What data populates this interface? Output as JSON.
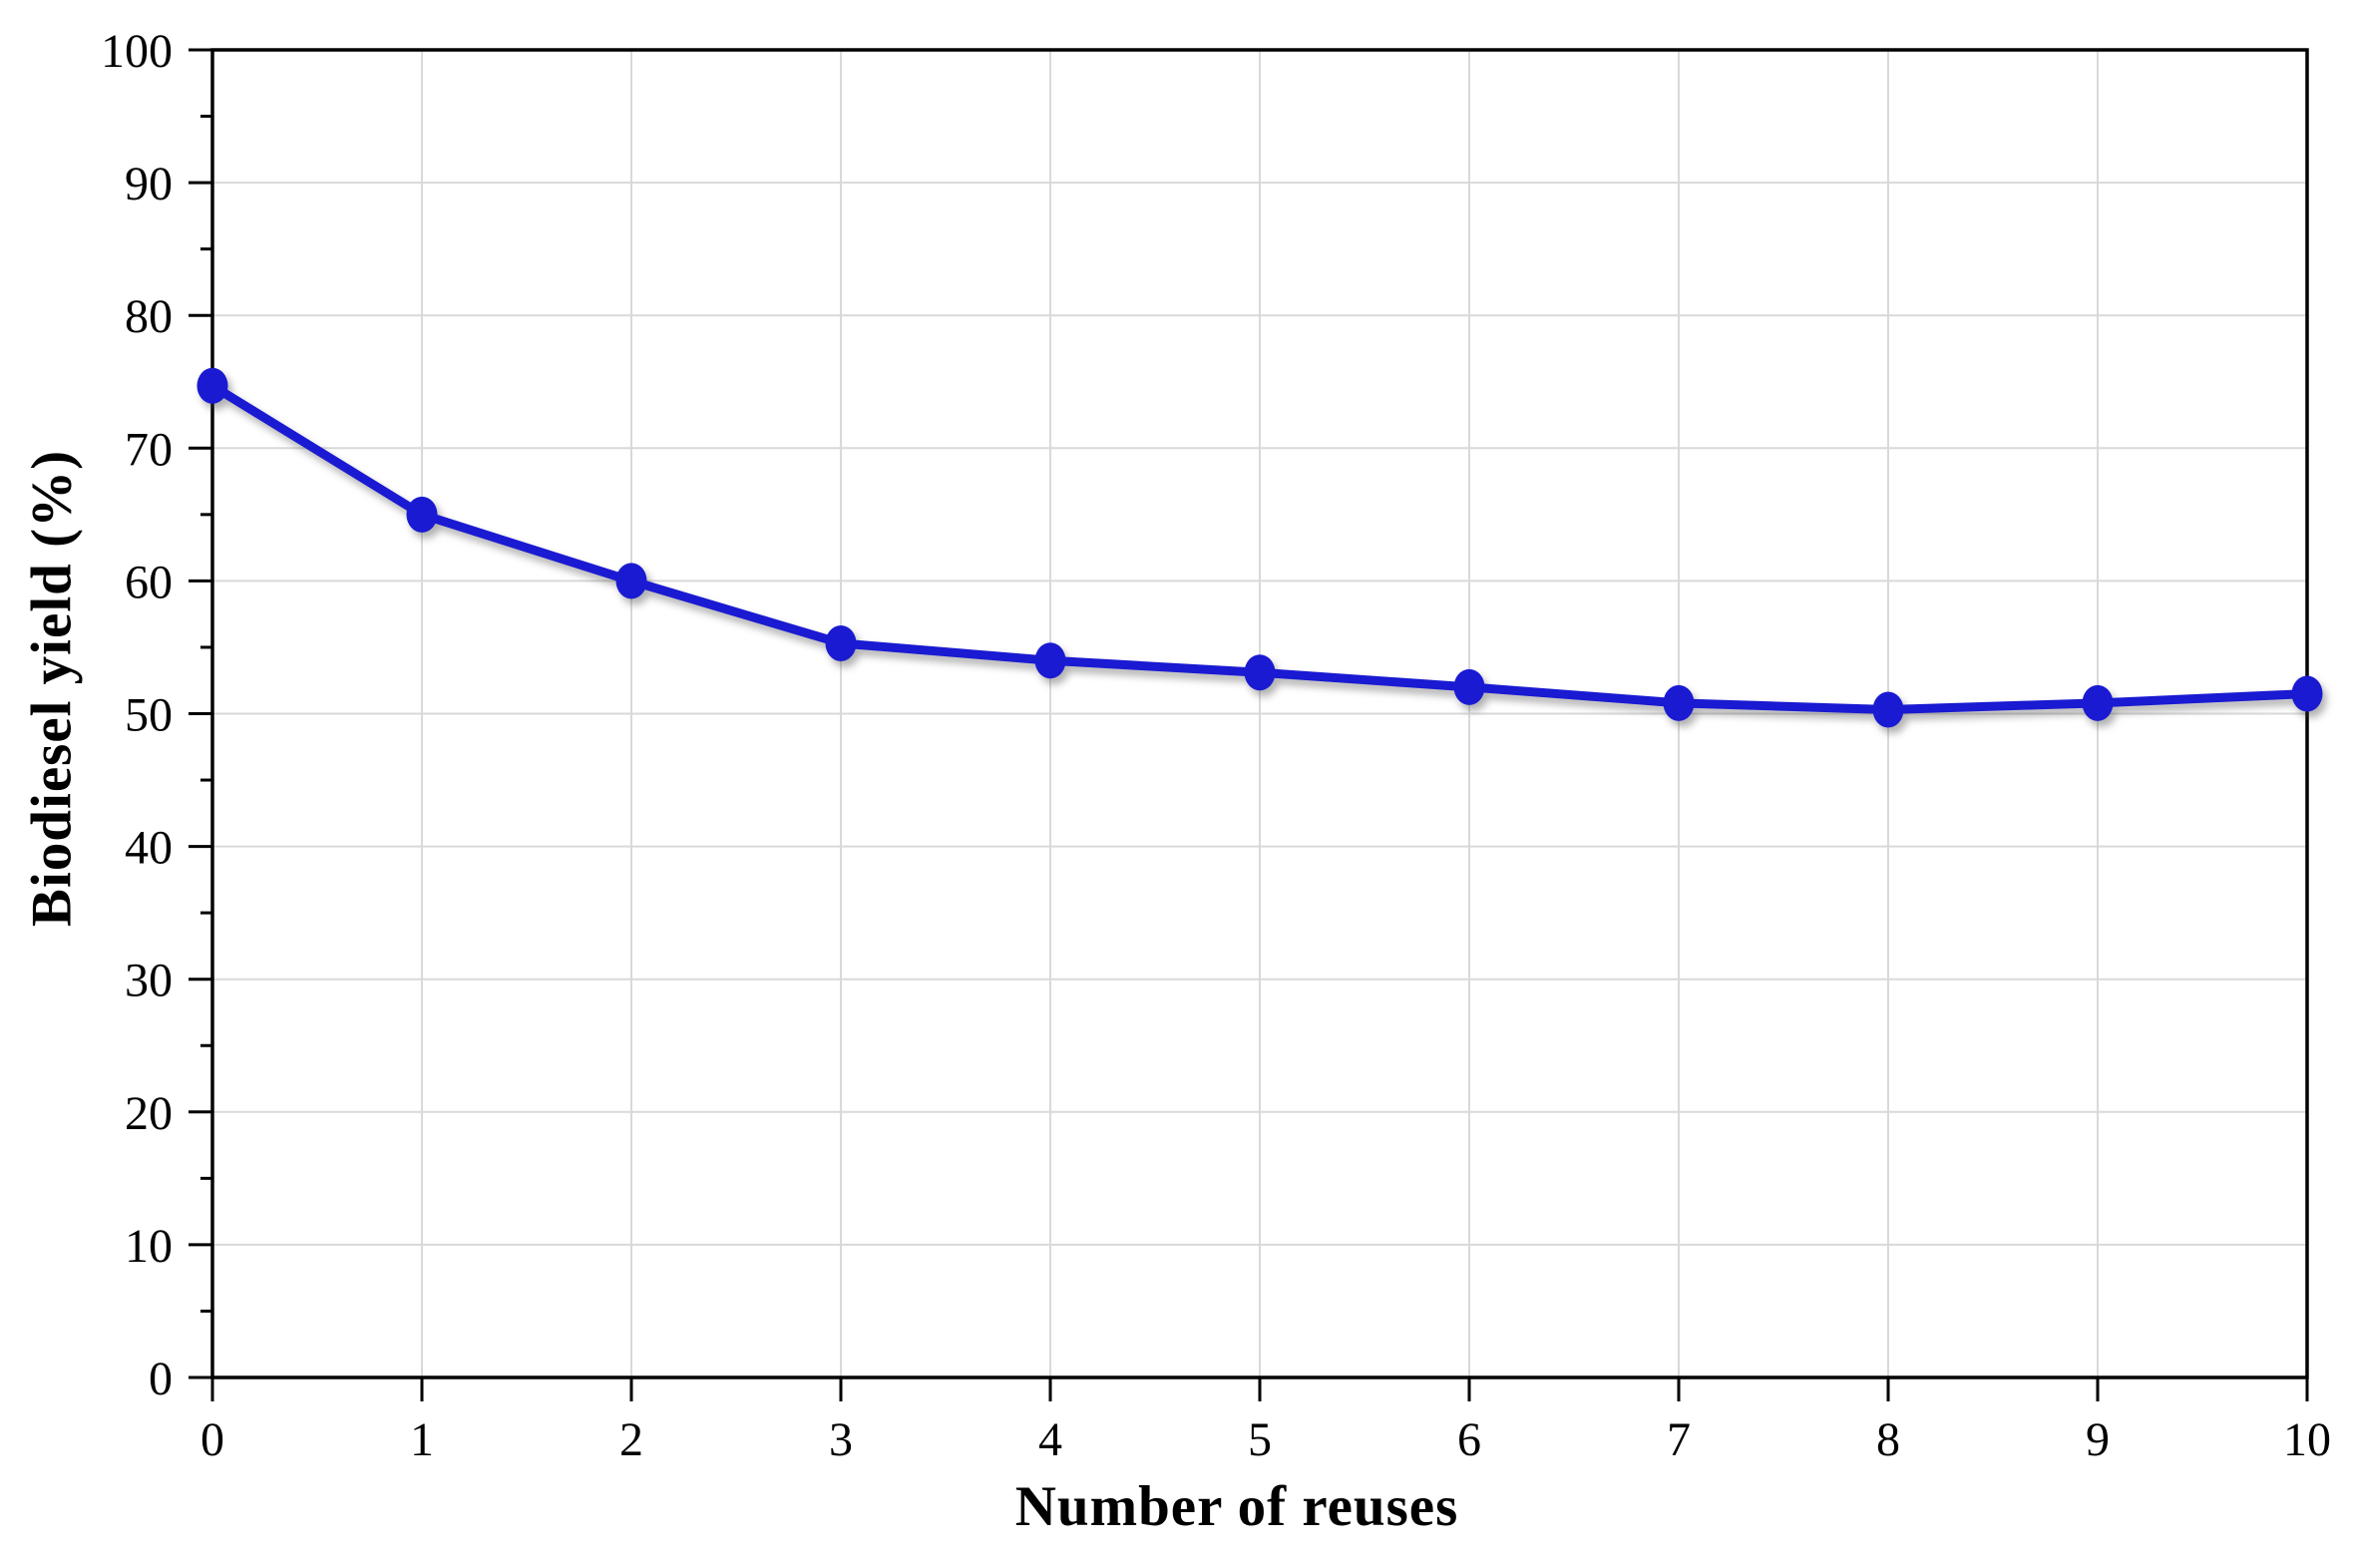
{
  "chart_data": {
    "type": "line",
    "title": "",
    "xlabel": "Number of reuses",
    "ylabel": "Biodiesel yield (%)",
    "x": [
      0,
      1,
      2,
      3,
      4,
      5,
      6,
      7,
      8,
      9,
      10
    ],
    "values": [
      74.7,
      65.0,
      60.0,
      55.3,
      54.0,
      53.1,
      52.0,
      50.8,
      50.3,
      50.8,
      51.5
    ],
    "xlim": [
      0,
      10
    ],
    "ylim": [
      0,
      100
    ],
    "x_ticks": [
      0,
      1,
      2,
      3,
      4,
      5,
      6,
      7,
      8,
      9,
      10
    ],
    "y_major_ticks": [
      0,
      10,
      20,
      30,
      40,
      50,
      60,
      70,
      80,
      90,
      100
    ],
    "y_minor_ticks": [
      5,
      15,
      25,
      35,
      45,
      55,
      65,
      75,
      85,
      95
    ],
    "grid": {
      "horizontal": true,
      "vertical": true,
      "color": "#d9d9d9"
    },
    "legend": null,
    "colors": {
      "line": "#1a1ad2",
      "marker": "#1a1ad2",
      "axis": "#000000",
      "background": "#ffffff"
    }
  }
}
